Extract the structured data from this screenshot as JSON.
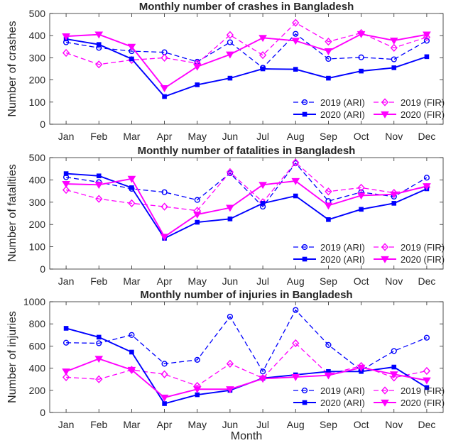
{
  "chart_data": [
    {
      "type": "line",
      "title": "Monthly number of crashes in Bangladesh",
      "xlabel": "",
      "ylabel": "Number of crashes",
      "ylim": [
        0,
        500
      ],
      "yticks": [
        0,
        100,
        200,
        300,
        400,
        500
      ],
      "categories": [
        "Jan",
        "Feb",
        "Mar",
        "Apr",
        "May",
        "Jun",
        "Jul",
        "Aug",
        "Sep",
        "Oct",
        "Nov",
        "Dec"
      ],
      "legend_position": "bottom-right",
      "series": [
        {
          "name": "2019 (ARI)",
          "color": "#0000ff",
          "dash": true,
          "marker": "circle",
          "values": [
            370,
            345,
            330,
            325,
            282,
            370,
            255,
            408,
            295,
            302,
            293,
            377
          ]
        },
        {
          "name": "2019 (FIR)",
          "color": "#ff00ff",
          "dash": true,
          "marker": "diamond",
          "values": [
            322,
            270,
            290,
            300,
            275,
            403,
            312,
            458,
            373,
            412,
            345,
            393
          ]
        },
        {
          "name": "2020 (ARI)",
          "color": "#0000ff",
          "dash": false,
          "marker": "square",
          "values": [
            385,
            360,
            295,
            125,
            178,
            208,
            250,
            248,
            208,
            240,
            255,
            305
          ]
        },
        {
          "name": "2020 (FIR)",
          "color": "#ff00ff",
          "dash": false,
          "marker": "triangle",
          "values": [
            397,
            405,
            350,
            163,
            260,
            315,
            390,
            377,
            330,
            407,
            378,
            405
          ]
        }
      ]
    },
    {
      "type": "line",
      "title": "Monthly number of fatalities in Bangladesh",
      "xlabel": "",
      "ylabel": "Number of fatalities",
      "ylim": [
        0,
        500
      ],
      "yticks": [
        0,
        100,
        200,
        300,
        400,
        500
      ],
      "categories": [
        "Jan",
        "Feb",
        "Mar",
        "Apr",
        "May",
        "Jun",
        "Jul",
        "Aug",
        "Sep",
        "Oct",
        "Nov",
        "Dec"
      ],
      "legend_position": "bottom-right",
      "series": [
        {
          "name": "2019 (ARI)",
          "color": "#0000ff",
          "dash": true,
          "marker": "circle",
          "values": [
            412,
            390,
            360,
            345,
            310,
            430,
            280,
            475,
            305,
            345,
            325,
            410
          ]
        },
        {
          "name": "2019 (FIR)",
          "color": "#ff00ff",
          "dash": true,
          "marker": "diamond",
          "values": [
            355,
            315,
            295,
            280,
            262,
            435,
            300,
            478,
            348,
            365,
            342,
            368
          ]
        },
        {
          "name": "2020 (ARI)",
          "color": "#0000ff",
          "dash": false,
          "marker": "square",
          "values": [
            428,
            418,
            365,
            138,
            210,
            225,
            295,
            328,
            222,
            268,
            295,
            360
          ]
        },
        {
          "name": "2020 (FIR)",
          "color": "#ff00ff",
          "dash": false,
          "marker": "triangle",
          "values": [
            382,
            378,
            405,
            145,
            245,
            275,
            378,
            395,
            285,
            330,
            335,
            372
          ]
        }
      ]
    },
    {
      "type": "line",
      "title": "Monthly number of injuries in Bangladesh",
      "xlabel": "Month",
      "ylabel": "Number of injuries",
      "ylim": [
        0,
        1000
      ],
      "yticks": [
        0,
        200,
        400,
        600,
        800,
        1000
      ],
      "categories": [
        "Jan",
        "Feb",
        "Mar",
        "Apr",
        "May",
        "Jun",
        "Jul",
        "Aug",
        "Sep",
        "Oct",
        "Nov",
        "Dec"
      ],
      "legend_position": "bottom-right",
      "series": [
        {
          "name": "2019 (ARI)",
          "color": "#0000ff",
          "dash": true,
          "marker": "circle",
          "values": [
            630,
            625,
            700,
            440,
            475,
            865,
            370,
            925,
            610,
            380,
            555,
            675
          ]
        },
        {
          "name": "2019 (FIR)",
          "color": "#ff00ff",
          "dash": true,
          "marker": "diamond",
          "values": [
            318,
            300,
            385,
            345,
            240,
            440,
            310,
            625,
            345,
            420,
            315,
            375
          ]
        },
        {
          "name": "2020 (ARI)",
          "color": "#0000ff",
          "dash": false,
          "marker": "square",
          "values": [
            760,
            680,
            545,
            80,
            160,
            200,
            310,
            340,
            370,
            370,
            410,
            225
          ]
        },
        {
          "name": "2020 (FIR)",
          "color": "#ff00ff",
          "dash": false,
          "marker": "triangle",
          "values": [
            370,
            485,
            385,
            135,
            210,
            210,
            305,
            320,
            335,
            405,
            345,
            290
          ]
        }
      ]
    }
  ]
}
